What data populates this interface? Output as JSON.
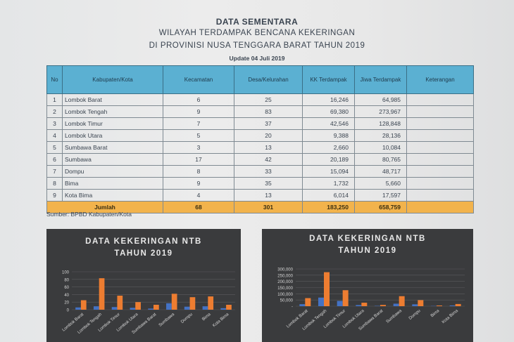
{
  "header": {
    "line1": "DATA SEMENTARA",
    "line2": "WILAYAH TERDAMPAK BENCANA KEKERINGAN",
    "line3": "DI PROVINISI NUSA TENGGARA BARAT TAHUN 2019",
    "update": "Update 04 Juli 2019"
  },
  "table": {
    "columns": [
      "No",
      "Kabupaten/Kota",
      "Kecamatan",
      "Desa/Kelurahan",
      "KK Terdampak",
      "Jiwa Terdampak",
      "Keterangan"
    ],
    "rows": [
      [
        "1",
        "Lombok Barat",
        "6",
        "25",
        "16,246",
        "64,985",
        ""
      ],
      [
        "2",
        "Lombok Tengah",
        "9",
        "83",
        "69,380",
        "273,967",
        ""
      ],
      [
        "3",
        "Lombok Timur",
        "7",
        "37",
        "42,546",
        "128,848",
        ""
      ],
      [
        "4",
        "Lombok Utara",
        "5",
        "20",
        "9,388",
        "28,136",
        ""
      ],
      [
        "5",
        "Sumbawa Barat",
        "3",
        "13",
        "2,660",
        "10,084",
        ""
      ],
      [
        "6",
        "Sumbawa",
        "17",
        "42",
        "20,189",
        "80,765",
        ""
      ],
      [
        "7",
        "Dompu",
        "8",
        "33",
        "15,094",
        "48,717",
        ""
      ],
      [
        "8",
        "Bima",
        "9",
        "35",
        "1,732",
        "5,660",
        ""
      ],
      [
        "9",
        "Kota Bima",
        "4",
        "13",
        "6,014",
        "17,597",
        ""
      ]
    ],
    "total": {
      "label": "Jumlah",
      "kecamatan": "68",
      "desa": "301",
      "kk": "183,250",
      "jiwa": "658,759",
      "keterangan": ""
    }
  },
  "source": "Sumber: BPBD Kabupaten/Kota",
  "chart_data": [
    {
      "type": "bar",
      "title_line1": "DATA KEKERINGAN NTB",
      "title_line2": "TAHUN 2019",
      "categories": [
        "Lombok Barat",
        "Lombok Tengah",
        "Lombok Timur",
        "Lombok Utara",
        "Sumbawa Barat",
        "Sumbawa",
        "Dompu",
        "Bima",
        "Kota Bima"
      ],
      "series": [
        {
          "values": [
            6,
            9,
            7,
            5,
            3,
            17,
            8,
            9,
            4
          ],
          "color": "#4472c4"
        },
        {
          "values": [
            25,
            83,
            37,
            20,
            13,
            42,
            33,
            35,
            13
          ],
          "color": "#ed7d31"
        }
      ],
      "yticks": [
        "0",
        "20",
        "40",
        "60",
        "80",
        "100"
      ],
      "ylim": [
        0,
        100
      ],
      "grid": true
    },
    {
      "type": "bar",
      "title_line1": "DATA KEKERINGAN NTB",
      "title_line2": "TAHUN 2019",
      "categories": [
        "Lombok Barat",
        "Lombok Tengah",
        "Lombok Timur",
        "Lombok Utara",
        "Sumbawa Barat",
        "Sumbawa",
        "Dompu",
        "Bima",
        "Kota Bima"
      ],
      "series": [
        {
          "values": [
            16246,
            69380,
            42546,
            9388,
            2660,
            20189,
            15094,
            1732,
            6014
          ],
          "color": "#4472c4"
        },
        {
          "values": [
            64985,
            273967,
            128848,
            28136,
            10084,
            80765,
            48717,
            5660,
            17597
          ],
          "color": "#ed7d31"
        }
      ],
      "yticks": [
        "-",
        "50,000",
        "100,000",
        "150,000",
        "200,000",
        "250,000",
        "300,000"
      ],
      "ylim": [
        0,
        300000
      ],
      "grid": true
    }
  ]
}
